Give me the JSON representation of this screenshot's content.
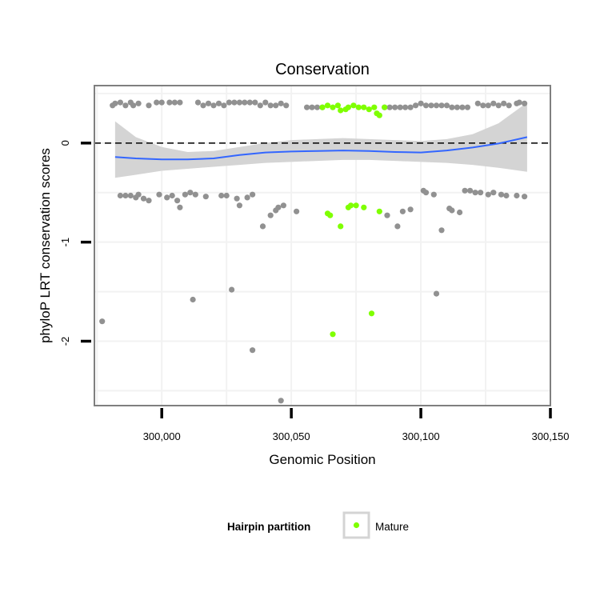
{
  "chart_data": {
    "type": "scatter",
    "title": "Conservation",
    "xlabel": "Genomic Position",
    "ylabel": "phyloP LRT conservation scores",
    "xlim": [
      299974,
      300150
    ],
    "ylim": [
      -2.65,
      0.58
    ],
    "x_ticks": [
      300000,
      300050,
      300100,
      300150
    ],
    "x_tick_labels": [
      "300,000",
      "300,050",
      "300,100",
      "300,150"
    ],
    "y_ticks": [
      0,
      -1,
      -2
    ],
    "y_tick_labels": [
      "0",
      "-1",
      "-2"
    ],
    "grid": true,
    "reference_line": {
      "y": 0,
      "style": "dashed"
    },
    "legend": {
      "title": "Hairpin partition",
      "entries": [
        "Mature"
      ],
      "position": "bottom"
    },
    "colors": {
      "other": "#919191",
      "mature": "#7fff00",
      "smooth": "#3366ff",
      "ribbon": "#d4d4d4",
      "panel_border": "#7f7f7f",
      "grid": "#f2f2f2"
    },
    "smooth": {
      "x": [
        299982,
        299990,
        300000,
        300010,
        300020,
        300030,
        300040,
        300050,
        300060,
        300070,
        300080,
        300090,
        300100,
        300110,
        300120,
        300130,
        300141
      ],
      "y": [
        -0.14,
        -0.155,
        -0.165,
        -0.165,
        -0.155,
        -0.12,
        -0.095,
        -0.085,
        -0.08,
        -0.075,
        -0.08,
        -0.09,
        -0.095,
        -0.075,
        -0.045,
        -0.005,
        0.06
      ],
      "lower": [
        -0.35,
        -0.32,
        -0.28,
        -0.26,
        -0.24,
        -0.22,
        -0.2,
        -0.19,
        -0.18,
        -0.17,
        -0.17,
        -0.18,
        -0.19,
        -0.2,
        -0.22,
        -0.25,
        -0.29
      ],
      "upper": [
        0.22,
        0.06,
        -0.04,
        -0.09,
        -0.08,
        -0.04,
        0.0,
        0.03,
        0.04,
        0.05,
        0.04,
        0.03,
        0.02,
        0.04,
        0.09,
        0.2,
        0.41
      ]
    },
    "series": [
      {
        "name": "",
        "points": [
          [
            299981,
            0.38
          ],
          [
            299982,
            0.4
          ],
          [
            299984,
            0.41
          ],
          [
            299986,
            0.38
          ],
          [
            299988,
            0.41
          ],
          [
            299989,
            0.38
          ],
          [
            299991,
            0.4
          ],
          [
            299995,
            0.38
          ],
          [
            299998,
            0.41
          ],
          [
            300000,
            0.41
          ],
          [
            300003,
            0.41
          ],
          [
            300005,
            0.41
          ],
          [
            300007,
            0.41
          ],
          [
            300014,
            0.41
          ],
          [
            300016,
            0.38
          ],
          [
            300018,
            0.4
          ],
          [
            300020,
            0.38
          ],
          [
            300022,
            0.4
          ],
          [
            300024,
            0.38
          ],
          [
            300026,
            0.41
          ],
          [
            300028,
            0.41
          ],
          [
            300030,
            0.41
          ],
          [
            300032,
            0.41
          ],
          [
            300034,
            0.41
          ],
          [
            300036,
            0.41
          ],
          [
            300038,
            0.38
          ],
          [
            300040,
            0.41
          ],
          [
            300042,
            0.38
          ],
          [
            300044,
            0.38
          ],
          [
            300046,
            0.4
          ],
          [
            300048,
            0.38
          ],
          [
            300056,
            0.36
          ],
          [
            300058,
            0.36
          ],
          [
            300060,
            0.36
          ],
          [
            300062,
            0.36
          ],
          [
            300086,
            0.36
          ],
          [
            300088,
            0.36
          ],
          [
            300090,
            0.36
          ],
          [
            300092,
            0.36
          ],
          [
            300094,
            0.36
          ],
          [
            300096,
            0.36
          ],
          [
            300098,
            0.38
          ],
          [
            300100,
            0.4
          ],
          [
            300102,
            0.38
          ],
          [
            300104,
            0.38
          ],
          [
            300106,
            0.38
          ],
          [
            300108,
            0.38
          ],
          [
            300110,
            0.38
          ],
          [
            300112,
            0.36
          ],
          [
            300114,
            0.36
          ],
          [
            300116,
            0.36
          ],
          [
            300118,
            0.36
          ],
          [
            300122,
            0.4
          ],
          [
            300124,
            0.38
          ],
          [
            300126,
            0.38
          ],
          [
            300128,
            0.4
          ],
          [
            300130,
            0.38
          ],
          [
            300132,
            0.4
          ],
          [
            300134,
            0.38
          ],
          [
            300137,
            0.4
          ],
          [
            300138,
            0.41
          ],
          [
            300140,
            0.4
          ],
          [
            299984,
            -0.53
          ],
          [
            299986,
            -0.53
          ],
          [
            299988,
            -0.53
          ],
          [
            299990,
            -0.55
          ],
          [
            299991,
            -0.52
          ],
          [
            299993,
            -0.56
          ],
          [
            299995,
            -0.58
          ],
          [
            299999,
            -0.52
          ],
          [
            300002,
            -0.55
          ],
          [
            300004,
            -0.53
          ],
          [
            300006,
            -0.58
          ],
          [
            300007,
            -0.65
          ],
          [
            300009,
            -0.52
          ],
          [
            300011,
            -0.5
          ],
          [
            300013,
            -0.52
          ],
          [
            300017,
            -0.54
          ],
          [
            300023,
            -0.53
          ],
          [
            300025,
            -0.53
          ],
          [
            300029,
            -0.56
          ],
          [
            300030,
            -0.63
          ],
          [
            300033,
            -0.55
          ],
          [
            300035,
            -0.52
          ],
          [
            300039,
            -0.84
          ],
          [
            300042,
            -0.73
          ],
          [
            300044,
            -0.68
          ],
          [
            300045,
            -0.65
          ],
          [
            300047,
            -0.63
          ],
          [
            300052,
            -0.69
          ],
          [
            300087,
            -0.73
          ],
          [
            300091,
            -0.84
          ],
          [
            300093,
            -0.69
          ],
          [
            300096,
            -0.67
          ],
          [
            300101,
            -0.48
          ],
          [
            300102,
            -0.5
          ],
          [
            300105,
            -0.52
          ],
          [
            300108,
            -0.88
          ],
          [
            300111,
            -0.66
          ],
          [
            300112,
            -0.68
          ],
          [
            300115,
            -0.7
          ],
          [
            300117,
            -0.48
          ],
          [
            300119,
            -0.48
          ],
          [
            300121,
            -0.5
          ],
          [
            300123,
            -0.5
          ],
          [
            300126,
            -0.52
          ],
          [
            300128,
            -0.5
          ],
          [
            300131,
            -0.52
          ],
          [
            300133,
            -0.53
          ],
          [
            300137,
            -0.53
          ],
          [
            300140,
            -0.54
          ],
          [
            299977,
            -1.8
          ],
          [
            300012,
            -1.58
          ],
          [
            300027,
            -1.48
          ],
          [
            300035,
            -2.09
          ],
          [
            300046,
            -2.6
          ],
          [
            300106,
            -1.52
          ]
        ]
      },
      {
        "name": "Mature",
        "points": [
          [
            300062,
            0.36
          ],
          [
            300064,
            0.38
          ],
          [
            300066,
            0.36
          ],
          [
            300068,
            0.38
          ],
          [
            300069,
            0.33
          ],
          [
            300071,
            0.34
          ],
          [
            300072,
            0.36
          ],
          [
            300074,
            0.38
          ],
          [
            300076,
            0.36
          ],
          [
            300078,
            0.36
          ],
          [
            300080,
            0.34
          ],
          [
            300082,
            0.36
          ],
          [
            300083,
            0.3
          ],
          [
            300084,
            0.28
          ],
          [
            300086,
            0.36
          ],
          [
            300064,
            -0.71
          ],
          [
            300065,
            -0.73
          ],
          [
            300069,
            -0.84
          ],
          [
            300072,
            -0.65
          ],
          [
            300073,
            -0.63
          ],
          [
            300075,
            -0.63
          ],
          [
            300078,
            -0.65
          ],
          [
            300084,
            -0.69
          ],
          [
            300066,
            -1.93
          ],
          [
            300081,
            -1.72
          ]
        ]
      }
    ]
  }
}
